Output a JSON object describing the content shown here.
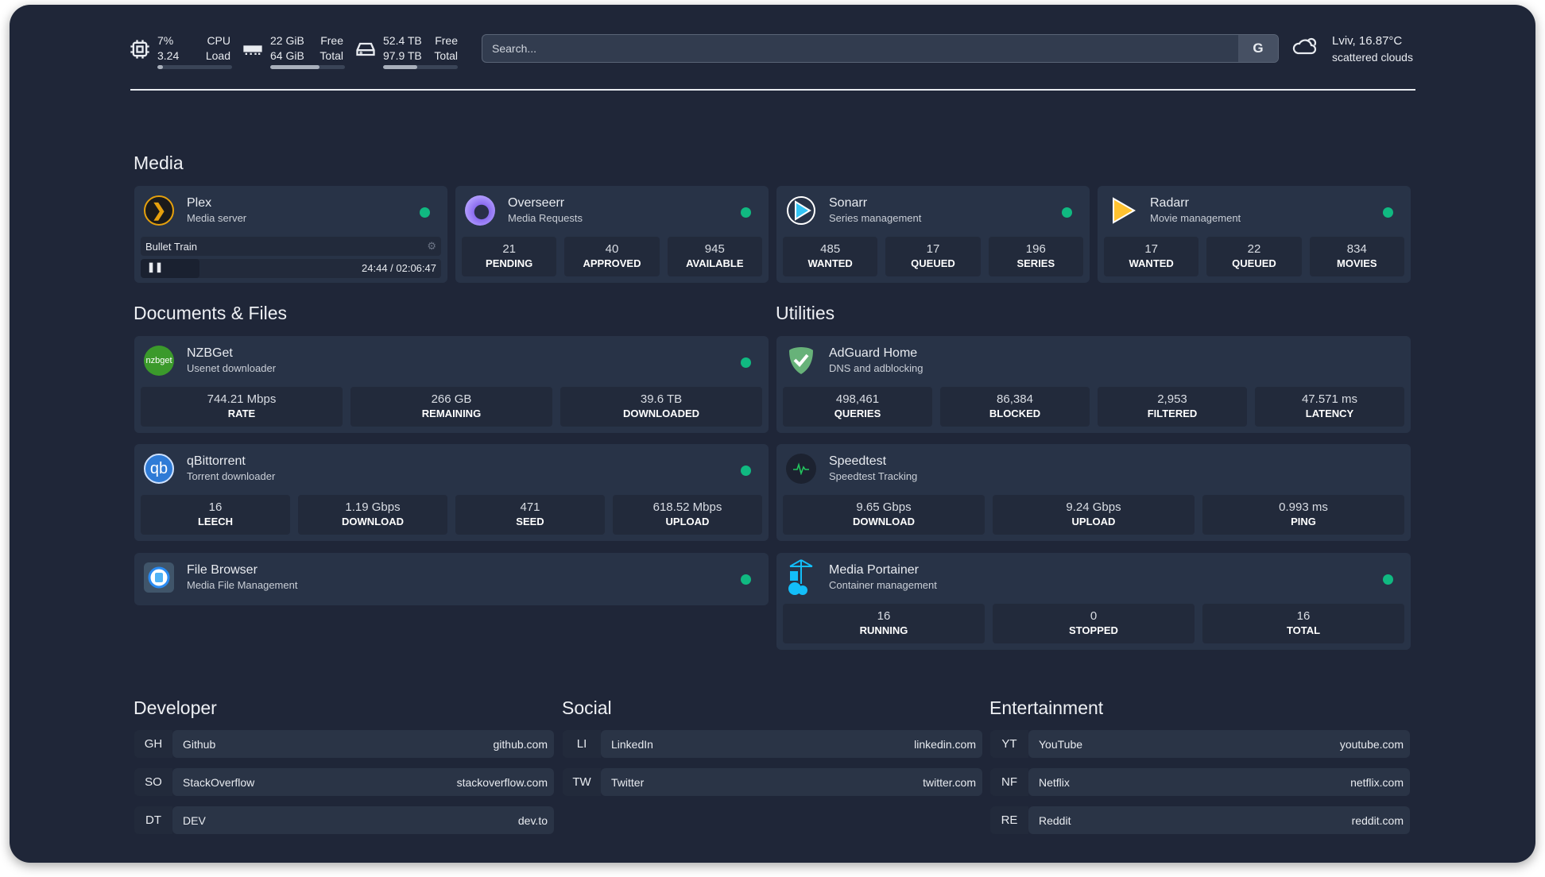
{
  "system": {
    "cpu": {
      "value": "7%",
      "load": "3.24",
      "label1": "CPU",
      "label2": "Load",
      "usage_percent": 7
    },
    "memory": {
      "value": "22 GiB",
      "total": "64 GiB",
      "label1": "Free",
      "label2": "Total",
      "used_percent": 66
    },
    "disk": {
      "value": "52.4 TB",
      "total": "97.9 TB",
      "label1": "Free",
      "label2": "Total",
      "used_percent": 46
    }
  },
  "search": {
    "placeholder": "Search...",
    "button": "G"
  },
  "weather": {
    "location_temp": "Lviv, 16.87°C",
    "condition": "scattered clouds",
    "icon": "cloud-sun-icon"
  },
  "colors": {
    "status_up": "#10b981",
    "background": "#1f2638",
    "card": "#283347"
  },
  "sections": {
    "media": "Media",
    "documents": "Documents & Files",
    "utilities": "Utilities",
    "developer": "Developer",
    "social": "Social",
    "entertainment": "Entertainment"
  },
  "plex": {
    "title": "Plex",
    "subtitle": "Media server",
    "now_playing": "Bullet Train",
    "time": "24:44 / 02:06:47",
    "progress_percent": 19.5
  },
  "cards": {
    "overseerr": {
      "title": "Overseerr",
      "subtitle": "Media Requests",
      "stats": [
        {
          "v": "21",
          "l": "PENDING"
        },
        {
          "v": "40",
          "l": "APPROVED"
        },
        {
          "v": "945",
          "l": "AVAILABLE"
        }
      ]
    },
    "sonarr": {
      "title": "Sonarr",
      "subtitle": "Series management",
      "stats": [
        {
          "v": "485",
          "l": "WANTED"
        },
        {
          "v": "17",
          "l": "QUEUED"
        },
        {
          "v": "196",
          "l": "SERIES"
        }
      ]
    },
    "radarr": {
      "title": "Radarr",
      "subtitle": "Movie management",
      "stats": [
        {
          "v": "17",
          "l": "WANTED"
        },
        {
          "v": "22",
          "l": "QUEUED"
        },
        {
          "v": "834",
          "l": "MOVIES"
        }
      ]
    },
    "nzbget": {
      "title": "NZBGet",
      "subtitle": "Usenet downloader",
      "logo_text": "nzbget",
      "stats": [
        {
          "v": "744.21 Mbps",
          "l": "RATE"
        },
        {
          "v": "266 GB",
          "l": "REMAINING"
        },
        {
          "v": "39.6 TB",
          "l": "DOWNLOADED"
        }
      ]
    },
    "qbittorrent": {
      "title": "qBittorrent",
      "subtitle": "Torrent downloader",
      "logo_text": "qb",
      "stats": [
        {
          "v": "16",
          "l": "LEECH"
        },
        {
          "v": "1.19 Gbps",
          "l": "DOWNLOAD"
        },
        {
          "v": "471",
          "l": "SEED"
        },
        {
          "v": "618.52 Mbps",
          "l": "UPLOAD"
        }
      ]
    },
    "filebrowser": {
      "title": "File Browser",
      "subtitle": "Media File Management",
      "stats": []
    },
    "adguard": {
      "title": "AdGuard Home",
      "subtitle": "DNS and adblocking",
      "stats": [
        {
          "v": "498,461",
          "l": "QUERIES"
        },
        {
          "v": "86,384",
          "l": "BLOCKED"
        },
        {
          "v": "2,953",
          "l": "FILTERED"
        },
        {
          "v": "47.571 ms",
          "l": "LATENCY"
        }
      ]
    },
    "speedtest": {
      "title": "Speedtest",
      "subtitle": "Speedtest Tracking",
      "stats": [
        {
          "v": "9.65 Gbps",
          "l": "DOWNLOAD"
        },
        {
          "v": "9.24 Gbps",
          "l": "UPLOAD"
        },
        {
          "v": "0.993 ms",
          "l": "PING"
        }
      ]
    },
    "portainer": {
      "title": "Media Portainer",
      "subtitle": "Container management",
      "stats": [
        {
          "v": "16",
          "l": "RUNNING"
        },
        {
          "v": "0",
          "l": "STOPPED"
        },
        {
          "v": "16",
          "l": "TOTAL"
        }
      ]
    }
  },
  "bookmarks": {
    "developer": [
      {
        "abbr": "GH",
        "name": "Github",
        "host": "github.com"
      },
      {
        "abbr": "SO",
        "name": "StackOverflow",
        "host": "stackoverflow.com"
      },
      {
        "abbr": "DT",
        "name": "DEV",
        "host": "dev.to"
      }
    ],
    "social": [
      {
        "abbr": "LI",
        "name": "LinkedIn",
        "host": "linkedin.com"
      },
      {
        "abbr": "TW",
        "name": "Twitter",
        "host": "twitter.com"
      }
    ],
    "entertainment": [
      {
        "abbr": "YT",
        "name": "YouTube",
        "host": "youtube.com"
      },
      {
        "abbr": "NF",
        "name": "Netflix",
        "host": "netflix.com"
      },
      {
        "abbr": "RE",
        "name": "Reddit",
        "host": "reddit.com"
      }
    ]
  }
}
